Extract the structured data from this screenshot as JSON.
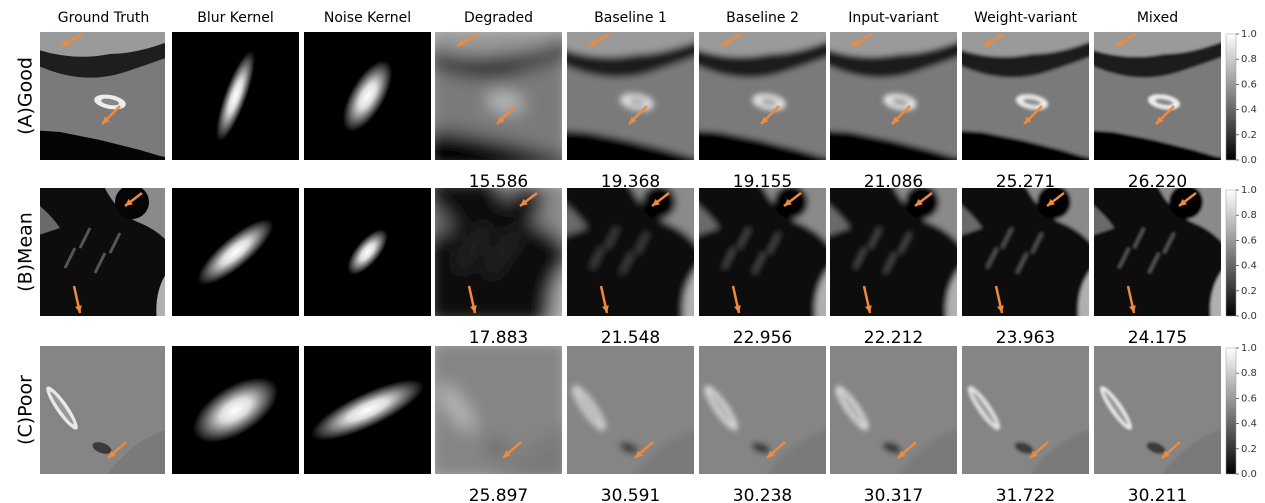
{
  "columns": [
    "Ground Truth",
    "Blur Kernel",
    "Noise Kernel",
    "Degraded",
    "Baseline 1",
    "Baseline 2",
    "Input-variant",
    "Weight-variant",
    "Mixed"
  ],
  "rows": [
    {
      "label": "(A)Good",
      "scores": [
        "15.586",
        "19.368",
        "19.155",
        "21.086",
        "25.271",
        "26.220"
      ]
    },
    {
      "label": "(B)Mean",
      "scores": [
        "17.883",
        "21.548",
        "22.956",
        "22.212",
        "23.963",
        "24.175"
      ]
    },
    {
      "label": "(C)Poor",
      "scores": [
        "25.897",
        "30.591",
        "30.238",
        "30.317",
        "31.722",
        "30.211"
      ]
    }
  ],
  "colorbar": {
    "ticks": [
      "1.0",
      "0.8",
      "0.6",
      "0.4",
      "0.2",
      "0.0"
    ]
  }
}
